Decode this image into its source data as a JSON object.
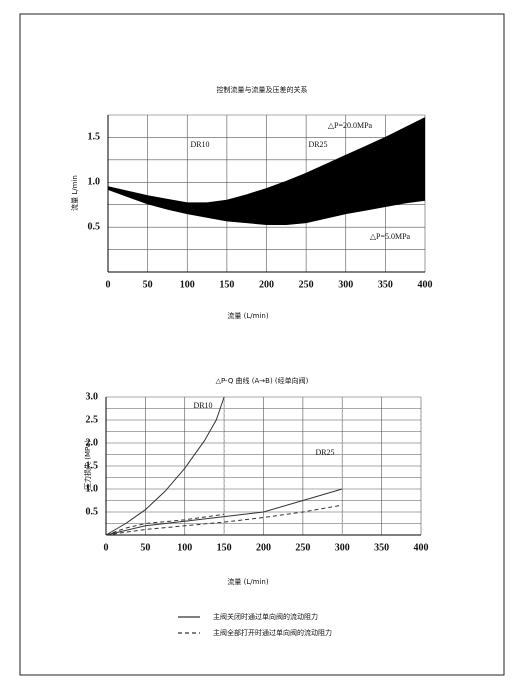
{
  "chart_data": [
    {
      "type": "band",
      "title": "控制流量与流量及压差的关系",
      "xlabel": "流量 (L/min)",
      "ylabel": "流量 L/min",
      "x": [
        0,
        25,
        50,
        75,
        100,
        125,
        150,
        175,
        200,
        225,
        250,
        275,
        300,
        325,
        350,
        375,
        400
      ],
      "series": [
        {
          "name": "△P=20.0MPa",
          "values": [
            0.95,
            0.9,
            0.85,
            0.81,
            0.77,
            0.77,
            0.8,
            0.86,
            0.93,
            1.01,
            1.1,
            1.2,
            1.3,
            1.4,
            1.5,
            1.61,
            1.72
          ]
        },
        {
          "name": "△P=5.0MPa",
          "values": [
            0.92,
            0.84,
            0.76,
            0.7,
            0.65,
            0.61,
            0.57,
            0.55,
            0.53,
            0.53,
            0.55,
            0.6,
            0.65,
            0.69,
            0.73,
            0.77,
            0.8
          ]
        }
      ],
      "color": "#000000",
      "annotations": [
        "DR10",
        "DR25"
      ],
      "xlim": [
        0,
        400
      ],
      "xticks": [
        0,
        50,
        100,
        150,
        200,
        250,
        300,
        350,
        400
      ],
      "ylim": [
        0,
        1.75
      ],
      "yticks": [
        0.5,
        {
          "value": 1,
          "label": "1.0"
        },
        1.5
      ],
      "ygrid": [
        0.25,
        0.5,
        0.75,
        1,
        1.25,
        1.5,
        1.75
      ],
      "grid": true
    },
    {
      "type": "line",
      "title": "△P-Q 曲线 (A→B) (经单向阀)",
      "xlabel": "流量 (L/min)",
      "ylabel": "压力损失 (MPa)",
      "annotations": [
        "DR10",
        "DR25"
      ],
      "series": [
        {
          "curve": "DR10",
          "style": "solid",
          "x": [
            0,
            25,
            50,
            75,
            100,
            125,
            140,
            150
          ],
          "values": [
            0,
            0.25,
            0.55,
            0.95,
            1.45,
            2.05,
            2.5,
            3.0
          ]
        },
        {
          "curve": "DR10",
          "style": "dashed",
          "x": [
            0,
            25,
            50,
            100,
            150
          ],
          "values": [
            0,
            0.15,
            0.25,
            0.33,
            0.45
          ]
        },
        {
          "curve": "DR25",
          "style": "solid",
          "x": [
            0,
            50,
            100,
            150,
            200,
            250,
            300
          ],
          "values": [
            0,
            0.2,
            0.3,
            0.4,
            0.5,
            0.75,
            1.0
          ]
        },
        {
          "curve": "DR25",
          "style": "dashed",
          "x": [
            0,
            50,
            100,
            150,
            200,
            250,
            300
          ],
          "values": [
            0,
            0.12,
            0.2,
            0.28,
            0.38,
            0.5,
            0.65
          ]
        }
      ],
      "color": "#333333",
      "legend": [
        {
          "style": "solid",
          "label": "主阀关闭时通过单向阀的流动阻力"
        },
        {
          "style": "dashed",
          "label": "主阀全部打开时通过单向阀的流动阻力"
        }
      ],
      "xlim": [
        0,
        400
      ],
      "xticks": [
        0,
        50,
        100,
        150,
        200,
        250,
        300,
        350,
        400
      ],
      "ylim": [
        0,
        3
      ],
      "yticks": [
        0.5,
        {
          "value": 1,
          "label": "1.0"
        },
        1.5,
        {
          "value": 2,
          "label": "2.0"
        },
        2.5,
        {
          "value": 3,
          "label": "3.0"
        }
      ],
      "ygrid": [
        0.25,
        0.5,
        0.75,
        1,
        1.25,
        1.5,
        1.75,
        2,
        2.25,
        2.5,
        2.75,
        3
      ],
      "grid": true
    }
  ]
}
